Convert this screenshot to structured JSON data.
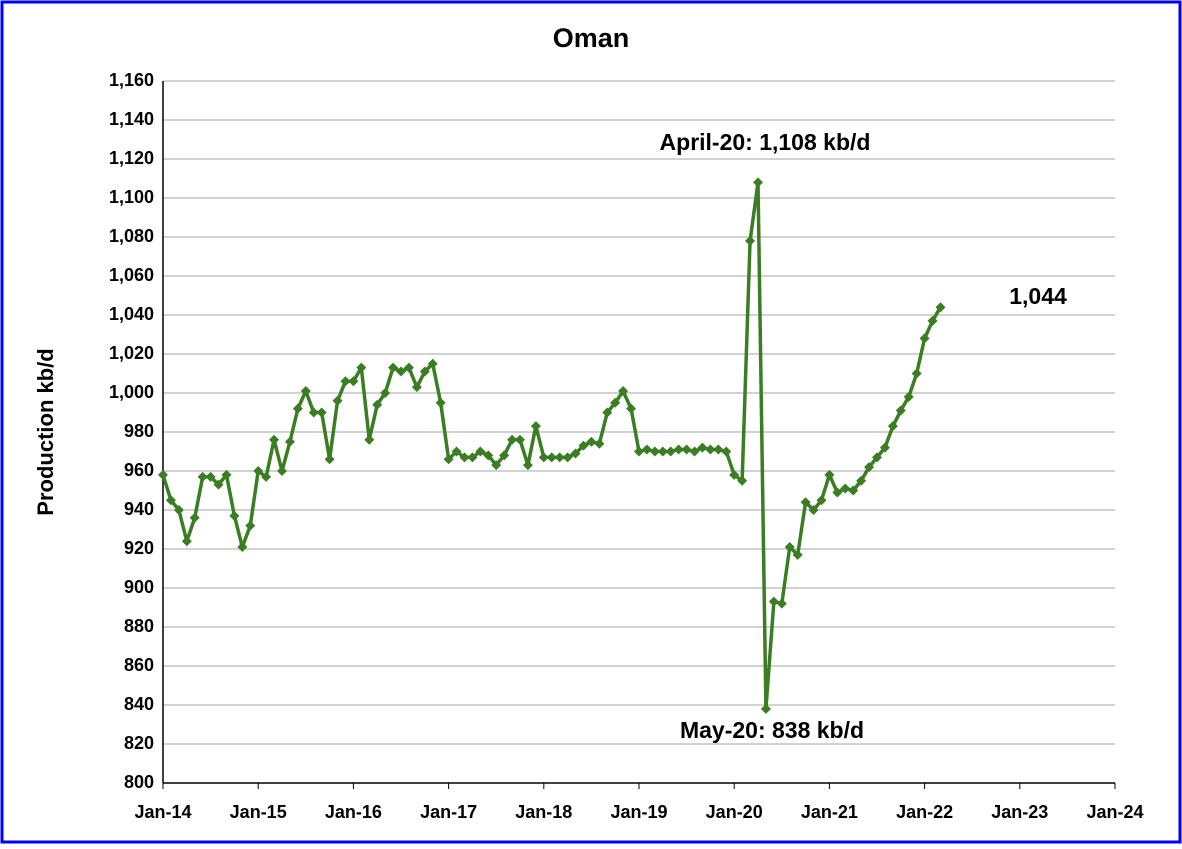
{
  "chart_data": {
    "type": "line",
    "title": "Oman",
    "y_label": "Production kb/d",
    "color": "#3b7d23",
    "grid": true,
    "x": [
      "2014-01",
      "2014-02",
      "2014-03",
      "2014-04",
      "2014-05",
      "2014-06",
      "2014-07",
      "2014-08",
      "2014-09",
      "2014-10",
      "2014-11",
      "2014-12",
      "2015-01",
      "2015-02",
      "2015-03",
      "2015-04",
      "2015-05",
      "2015-06",
      "2015-07",
      "2015-08",
      "2015-09",
      "2015-10",
      "2015-11",
      "2015-12",
      "2016-01",
      "2016-02",
      "2016-03",
      "2016-04",
      "2016-05",
      "2016-06",
      "2016-07",
      "2016-08",
      "2016-09",
      "2016-10",
      "2016-11",
      "2016-12",
      "2017-01",
      "2017-02",
      "2017-03",
      "2017-04",
      "2017-05",
      "2017-06",
      "2017-07",
      "2017-08",
      "2017-09",
      "2017-10",
      "2017-11",
      "2017-12",
      "2018-01",
      "2018-02",
      "2018-03",
      "2018-04",
      "2018-05",
      "2018-06",
      "2018-07",
      "2018-08",
      "2018-09",
      "2018-10",
      "2018-11",
      "2018-12",
      "2019-01",
      "2019-02",
      "2019-03",
      "2019-04",
      "2019-05",
      "2019-06",
      "2019-07",
      "2019-08",
      "2019-09",
      "2019-10",
      "2019-11",
      "2019-12",
      "2020-01",
      "2020-02",
      "2020-03",
      "2020-04",
      "2020-05",
      "2020-06",
      "2020-07",
      "2020-08",
      "2020-09",
      "2020-10",
      "2020-11",
      "2020-12",
      "2021-01",
      "2021-02",
      "2021-03",
      "2021-04",
      "2021-05",
      "2021-06",
      "2021-07",
      "2021-08",
      "2021-09",
      "2021-10",
      "2021-11",
      "2021-12",
      "2022-01",
      "2022-02",
      "2022-03"
    ],
    "values": [
      958,
      945,
      940,
      924,
      936,
      957,
      957,
      953,
      958,
      937,
      921,
      932,
      960,
      957,
      976,
      960,
      975,
      992,
      1001,
      990,
      990,
      966,
      996,
      1006,
      1006,
      1013,
      976,
      994,
      1000,
      1013,
      1011,
      1013,
      1003,
      1011,
      1015,
      995,
      966,
      970,
      967,
      967,
      970,
      968,
      963,
      968,
      976,
      976,
      963,
      983,
      967,
      967,
      967,
      967,
      969,
      973,
      975,
      974,
      990,
      995,
      1001,
      992,
      970,
      971,
      970,
      970,
      970,
      971,
      971,
      970,
      972,
      971,
      971,
      970,
      958,
      955,
      1078,
      1108,
      838,
      893,
      892,
      921,
      917,
      944,
      940,
      945,
      958,
      949,
      951,
      950,
      955,
      962,
      967,
      972,
      983,
      991,
      998,
      1010,
      1028,
      1037,
      1044
    ],
    "xlim": [
      "2014-01",
      "2024-01"
    ],
    "xticks": [
      {
        "value": "2014-01",
        "label": "Jan-14"
      },
      {
        "value": "2015-01",
        "label": "Jan-15"
      },
      {
        "value": "2016-01",
        "label": "Jan-16"
      },
      {
        "value": "2017-01",
        "label": "Jan-17"
      },
      {
        "value": "2018-01",
        "label": "Jan-18"
      },
      {
        "value": "2019-01",
        "label": "Jan-19"
      },
      {
        "value": "2020-01",
        "label": "Jan-20"
      },
      {
        "value": "2021-01",
        "label": "Jan-21"
      },
      {
        "value": "2022-01",
        "label": "Jan-22"
      },
      {
        "value": "2023-01",
        "label": "Jan-23"
      },
      {
        "value": "2024-01",
        "label": "Jan-24"
      }
    ],
    "ylim": [
      800,
      1160
    ],
    "yticks": [
      800,
      820,
      840,
      860,
      880,
      900,
      920,
      940,
      960,
      980,
      {
        "value": 1000,
        "label": "1,000"
      },
      {
        "value": 1020,
        "label": "1,020"
      },
      {
        "value": 1040,
        "label": "1,040"
      },
      {
        "value": 1060,
        "label": "1,060"
      },
      {
        "value": 1080,
        "label": "1,080"
      },
      {
        "value": 1100,
        "label": "1,100"
      },
      {
        "value": 1120,
        "label": "1,120"
      },
      {
        "value": 1140,
        "label": "1,140"
      },
      {
        "value": 1160,
        "label": "1,160"
      }
    ],
    "annotations": [
      "April-20: 1,108 kb/d",
      "May-20: 838 kb/d",
      "1,044"
    ]
  }
}
